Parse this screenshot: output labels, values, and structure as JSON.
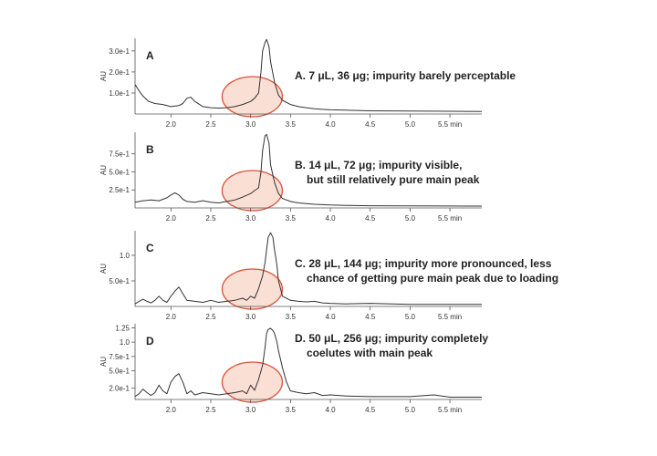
{
  "chart_data": [
    {
      "type": "line",
      "panel": "A",
      "ylabel": "AU",
      "y_ticks": [
        {
          "value": 0.1,
          "label": "1.0e-1"
        },
        {
          "value": 0.2,
          "label": "2.0e-1"
        },
        {
          "value": 0.3,
          "label": "3.0e-1"
        }
      ],
      "ylim": [
        0,
        0.36
      ],
      "xlim": [
        1.55,
        5.9
      ],
      "x_ticks": [
        "2.0",
        "2.5",
        "3.0",
        "3.5",
        "4.0",
        "4.5",
        "5.0",
        "5.5 min"
      ],
      "x_tick_values": [
        2.0,
        2.5,
        3.0,
        3.5,
        4.0,
        4.5,
        5.0,
        5.5
      ],
      "annotation": [
        "A. 7 μL, 36 μg; impurity barely perceptable"
      ],
      "highlight_center_x": 3.02,
      "series": [
        {
          "x": [
            1.55,
            1.6,
            1.65,
            1.72,
            1.8,
            1.9,
            2.0,
            2.1,
            2.15,
            2.2,
            2.25,
            2.3,
            2.4,
            2.5,
            2.6,
            2.7,
            2.8,
            2.9,
            3.0,
            3.05,
            3.1,
            3.13,
            3.15,
            3.18,
            3.2,
            3.23,
            3.25,
            3.3,
            3.35,
            3.4,
            3.5,
            3.6,
            3.7,
            3.8,
            3.9,
            4.0,
            4.2,
            4.5,
            5.0,
            5.5,
            5.9
          ],
          "y": [
            0.14,
            0.11,
            0.085,
            0.06,
            0.05,
            0.045,
            0.035,
            0.04,
            0.05,
            0.075,
            0.08,
            0.06,
            0.035,
            0.03,
            0.028,
            0.03,
            0.035,
            0.045,
            0.06,
            0.075,
            0.1,
            0.2,
            0.3,
            0.34,
            0.355,
            0.32,
            0.25,
            0.15,
            0.09,
            0.065,
            0.045,
            0.035,
            0.03,
            0.025,
            0.022,
            0.02,
            0.018,
            0.015,
            0.014,
            0.013,
            0.012
          ]
        }
      ]
    },
    {
      "type": "line",
      "panel": "B",
      "ylabel": "AU",
      "y_ticks": [
        {
          "value": 0.25,
          "label": "2.5e-1"
        },
        {
          "value": 0.5,
          "label": "5.0e-1"
        },
        {
          "value": 0.75,
          "label": "7.5e-1"
        }
      ],
      "ylim": [
        0,
        1.05
      ],
      "xlim": [
        1.55,
        5.9
      ],
      "x_ticks": [
        "2.0",
        "2.5",
        "3.0",
        "3.5",
        "4.0",
        "4.5",
        "5.0",
        "5.5 min"
      ],
      "x_tick_values": [
        2.0,
        2.5,
        3.0,
        3.5,
        4.0,
        4.5,
        5.0,
        5.5
      ],
      "annotation": [
        "B. 14 μL, 72 μg; impurity visible,",
        "but still relatively pure main peak"
      ],
      "highlight_center_x": 3.02,
      "series": [
        {
          "x": [
            1.55,
            1.65,
            1.75,
            1.85,
            1.95,
            2.0,
            2.05,
            2.1,
            2.15,
            2.2,
            2.3,
            2.4,
            2.5,
            2.6,
            2.7,
            2.8,
            2.9,
            3.0,
            3.05,
            3.1,
            3.13,
            3.15,
            3.18,
            3.2,
            3.23,
            3.25,
            3.3,
            3.35,
            3.4,
            3.5,
            3.6,
            3.7,
            3.8,
            3.9,
            4.0,
            4.2,
            4.5,
            5.0,
            5.5,
            5.9
          ],
          "y": [
            0.08,
            0.1,
            0.11,
            0.1,
            0.14,
            0.18,
            0.21,
            0.18,
            0.12,
            0.09,
            0.08,
            0.1,
            0.08,
            0.07,
            0.09,
            0.11,
            0.15,
            0.2,
            0.24,
            0.28,
            0.5,
            0.8,
            1.0,
            1.02,
            0.9,
            0.6,
            0.35,
            0.2,
            0.13,
            0.09,
            0.07,
            0.06,
            0.05,
            0.045,
            0.04,
            0.035,
            0.03,
            0.028,
            0.026,
            0.025
          ]
        }
      ]
    },
    {
      "type": "line",
      "panel": "C",
      "ylabel": "AU",
      "y_ticks": [
        {
          "value": 0.5,
          "label": "5.0e-1"
        },
        {
          "value": 1.0,
          "label": "1.0"
        }
      ],
      "ylim": [
        0,
        1.48
      ],
      "xlim": [
        1.55,
        5.9
      ],
      "x_ticks": [
        "2.0",
        "2.5",
        "3.0",
        "3.5",
        "4.0",
        "4.5",
        "5.0",
        "5.5 min"
      ],
      "x_tick_values": [
        2.0,
        2.5,
        3.0,
        3.5,
        4.0,
        4.5,
        5.0,
        5.5
      ],
      "annotation": [
        "C. 28 μL, 144 μg; impurity more pronounced, less",
        "chance of getting pure main peak due to loading"
      ],
      "highlight_center_x": 3.02,
      "series": [
        {
          "x": [
            1.55,
            1.6,
            1.65,
            1.7,
            1.75,
            1.8,
            1.85,
            1.9,
            1.95,
            2.0,
            2.05,
            2.1,
            2.15,
            2.2,
            2.3,
            2.4,
            2.5,
            2.6,
            2.7,
            2.8,
            2.9,
            2.95,
            3.0,
            3.05,
            3.1,
            3.15,
            3.18,
            3.2,
            3.22,
            3.25,
            3.28,
            3.3,
            3.33,
            3.35,
            3.4,
            3.5,
            3.6,
            3.7,
            3.8,
            3.9,
            4.0,
            4.2,
            4.5,
            5.0,
            5.5,
            5.9
          ],
          "y": [
            0.05,
            0.1,
            0.14,
            0.1,
            0.07,
            0.12,
            0.2,
            0.12,
            0.08,
            0.2,
            0.3,
            0.38,
            0.25,
            0.12,
            0.1,
            0.08,
            0.12,
            0.08,
            0.1,
            0.12,
            0.16,
            0.12,
            0.2,
            0.16,
            0.35,
            0.6,
            0.85,
            1.1,
            1.35,
            1.44,
            1.35,
            1.1,
            0.8,
            0.5,
            0.2,
            0.12,
            0.1,
            0.09,
            0.1,
            0.07,
            0.06,
            0.05,
            0.06,
            0.04,
            0.04,
            0.04
          ]
        }
      ]
    },
    {
      "type": "line",
      "panel": "D",
      "ylabel": "AU",
      "y_ticks": [
        {
          "value": 0.2,
          "label": "2.0e-1"
        },
        {
          "value": 0.5,
          "label": "5.0e-1"
        },
        {
          "value": 0.75,
          "label": "7.5e-1"
        },
        {
          "value": 1.0,
          "label": "1.0"
        },
        {
          "value": 1.25,
          "label": "1.25"
        }
      ],
      "ylim": [
        0,
        1.32
      ],
      "xlim": [
        1.55,
        5.9
      ],
      "x_ticks": [
        "2.0",
        "2.5",
        "3.0",
        "3.5",
        "4.0",
        "4.5",
        "5.0",
        "5.5 min"
      ],
      "x_tick_values": [
        2.0,
        2.5,
        3.0,
        3.5,
        4.0,
        4.5,
        5.0,
        5.5
      ],
      "annotation": [
        "D. 50 μL, 256 μg; impurity completely",
        "coelutes with main peak"
      ],
      "highlight_center_x": 3.02,
      "series": [
        {
          "x": [
            1.55,
            1.6,
            1.65,
            1.7,
            1.75,
            1.8,
            1.85,
            1.9,
            1.95,
            2.0,
            2.05,
            2.1,
            2.15,
            2.2,
            2.25,
            2.3,
            2.4,
            2.5,
            2.6,
            2.7,
            2.8,
            2.9,
            2.95,
            3.0,
            3.05,
            3.1,
            3.15,
            3.18,
            3.2,
            3.22,
            3.25,
            3.28,
            3.3,
            3.33,
            3.35,
            3.4,
            3.45,
            3.5,
            3.6,
            3.7,
            3.8,
            3.9,
            4.0,
            4.2,
            4.5,
            5.0,
            5.3,
            5.5,
            5.9
          ],
          "y": [
            0.05,
            0.1,
            0.18,
            0.12,
            0.07,
            0.12,
            0.25,
            0.15,
            0.1,
            0.3,
            0.4,
            0.45,
            0.3,
            0.1,
            0.15,
            0.08,
            0.12,
            0.1,
            0.08,
            0.1,
            0.12,
            0.15,
            0.1,
            0.25,
            0.16,
            0.35,
            0.6,
            0.9,
            1.15,
            1.22,
            1.24,
            1.2,
            1.15,
            1.0,
            0.85,
            0.55,
            0.3,
            0.15,
            0.12,
            0.1,
            0.12,
            0.07,
            0.08,
            0.06,
            0.05,
            0.05,
            0.08,
            0.04,
            0.04
          ]
        }
      ]
    }
  ]
}
